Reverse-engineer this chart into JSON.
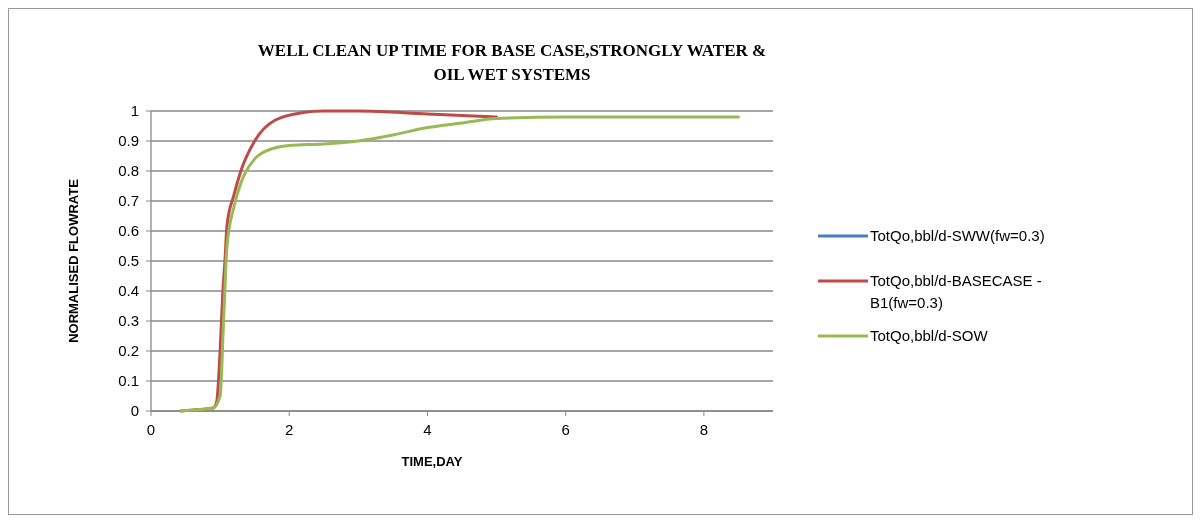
{
  "chart_data": {
    "type": "line",
    "title": "WELL CLEAN UP TIME FOR BASE CASE,STRONGLY WATER & OIL WET SYSTEMS",
    "xlabel": "TIME,DAY",
    "ylabel": "NORMALISED FLOWRATE",
    "xlim": [
      0,
      9
    ],
    "xticks": [
      0,
      2,
      4,
      6,
      8
    ],
    "ylim": [
      0,
      1
    ],
    "yticks": [
      0,
      0.1,
      0.2,
      0.3,
      0.4,
      0.5,
      0.6,
      0.7,
      0.8,
      0.9,
      1
    ],
    "grid": "y",
    "legend": "right",
    "marker": "none",
    "line_style": "solid",
    "series": [
      {
        "name": "TotQo,bbl/d-SWW(fw=0.3)",
        "color": "#4a7ebb"
      },
      {
        "name": "TotQo,bbl/d-BASECASE - B1(fw=0.3)",
        "color": "#be4b48",
        "x": [
          0.43,
          0.7,
          0.9,
          0.95,
          1.0,
          1.04,
          1.07,
          1.1,
          1.2,
          1.3,
          1.5,
          1.8,
          2.2,
          2.5,
          3,
          4,
          5
        ],
        "values": [
          0,
          0.005,
          0.01,
          0.03,
          0.2,
          0.4,
          0.5,
          0.62,
          0.72,
          0.8,
          0.9,
          0.97,
          0.995,
          1.0,
          1.0,
          0.99,
          0.98
        ]
      },
      {
        "name": "TotQo,bbl/d-SOW",
        "color": "#98b954",
        "x": [
          0.43,
          0.7,
          0.9,
          1.0,
          1.05,
          1.1,
          1.2,
          1.3,
          1.5,
          1.7,
          2,
          2.5,
          3,
          3.5,
          4,
          4.5,
          5,
          6,
          8.5
        ],
        "values": [
          0,
          0.005,
          0.01,
          0.05,
          0.3,
          0.55,
          0.68,
          0.76,
          0.84,
          0.87,
          0.885,
          0.89,
          0.9,
          0.92,
          0.945,
          0.96,
          0.975,
          0.98,
          0.98
        ]
      }
    ]
  }
}
